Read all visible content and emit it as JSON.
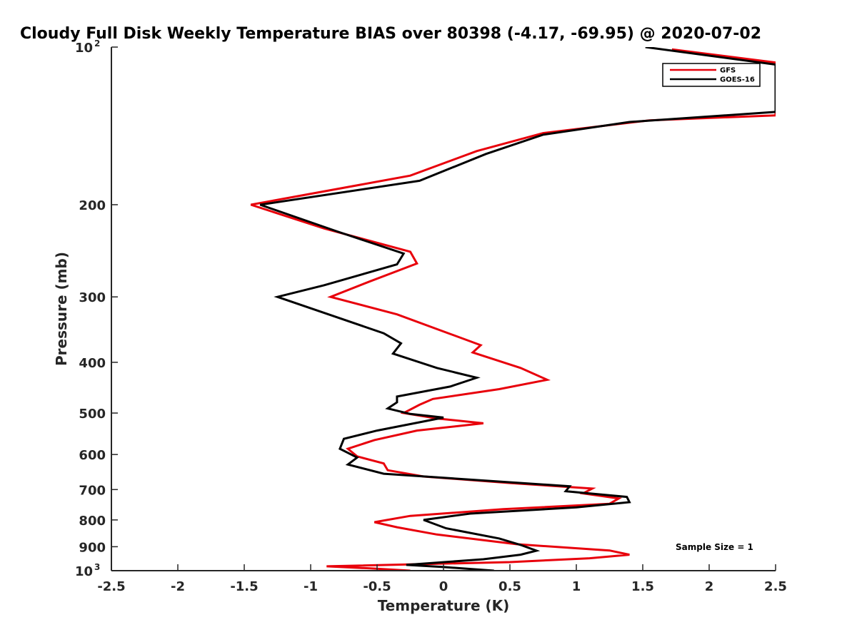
{
  "chart_data": {
    "type": "line",
    "title": "Cloudy Full Disk Weekly Temperature BIAS over 80398 (-4.17, -69.95) @ 2020-07-02",
    "xlabel": "Temperature (K)",
    "ylabel": "Pressure (mb)",
    "xlim": [
      -2.5,
      2.5
    ],
    "ylim": [
      100,
      1000
    ],
    "y_scale": "log",
    "y_reversed": true,
    "x_ticks": [
      "-2.5",
      "-2",
      "-1.5",
      "-1",
      "-0.5",
      "0",
      "0.5",
      "1",
      "1.5",
      "2",
      "2.5"
    ],
    "y_ticks": [
      {
        "value": 100,
        "label": "10",
        "sup": "2"
      },
      {
        "value": 200,
        "label": "200"
      },
      {
        "value": 300,
        "label": "300"
      },
      {
        "value": 400,
        "label": "400"
      },
      {
        "value": 500,
        "label": "500"
      },
      {
        "value": 600,
        "label": "600"
      },
      {
        "value": 700,
        "label": "700"
      },
      {
        "value": 800,
        "label": "800"
      },
      {
        "value": 900,
        "label": "900"
      },
      {
        "value": 1000,
        "label": "10",
        "sup": "3"
      }
    ],
    "legend": {
      "position": "top-right",
      "entries": [
        "GFS",
        "GOES-16"
      ]
    },
    "annotation": "Sample Size = 1",
    "grid": false,
    "series": [
      {
        "name": "GFS",
        "color": "#e8000b",
        "points": [
          [
            1.72,
            101
          ],
          [
            2.5,
            107
          ],
          [
            2.5,
            135
          ],
          [
            1.55,
            138
          ],
          [
            0.75,
            146
          ],
          [
            0.25,
            158
          ],
          [
            -0.25,
            176
          ],
          [
            -1.45,
            200
          ],
          [
            -0.9,
            222
          ],
          [
            -0.25,
            246
          ],
          [
            -0.2,
            259
          ],
          [
            -0.55,
            280
          ],
          [
            -0.85,
            300
          ],
          [
            -0.35,
            324
          ],
          [
            0.05,
            353
          ],
          [
            0.28,
            371
          ],
          [
            0.22,
            383
          ],
          [
            0.58,
            410
          ],
          [
            0.78,
            432
          ],
          [
            0.42,
            450
          ],
          [
            -0.08,
            470
          ],
          [
            -0.18,
            482
          ],
          [
            -0.3,
            500
          ],
          [
            -0.05,
            512
          ],
          [
            0.3,
            523
          ],
          [
            -0.2,
            540
          ],
          [
            -0.52,
            563
          ],
          [
            -0.72,
            585
          ],
          [
            -0.65,
            605
          ],
          [
            -0.45,
            624
          ],
          [
            -0.42,
            643
          ],
          [
            -0.15,
            661
          ],
          [
            0.5,
            680
          ],
          [
            1.12,
            697
          ],
          [
            1.05,
            712
          ],
          [
            1.32,
            728
          ],
          [
            1.25,
            745
          ],
          [
            0.45,
            763
          ],
          [
            -0.25,
            786
          ],
          [
            -0.52,
            808
          ],
          [
            -0.35,
            826
          ],
          [
            -0.05,
            853
          ],
          [
            0.55,
            890
          ],
          [
            1.25,
            915
          ],
          [
            1.4,
            932
          ],
          [
            1.1,
            947
          ],
          [
            0.5,
            963
          ],
          [
            -0.88,
            981
          ],
          [
            -0.55,
            990
          ],
          [
            -0.25,
            1000
          ]
        ]
      },
      {
        "name": "GOES-16",
        "color": "#000000",
        "points": [
          [
            1.52,
            100
          ],
          [
            2.5,
            108
          ],
          [
            2.5,
            133
          ],
          [
            1.4,
            139
          ],
          [
            0.75,
            147
          ],
          [
            0.32,
            160
          ],
          [
            -0.18,
            180
          ],
          [
            -1.38,
            200
          ],
          [
            -0.8,
            225
          ],
          [
            -0.3,
            248
          ],
          [
            -0.35,
            260
          ],
          [
            -0.9,
            285
          ],
          [
            -1.25,
            300
          ],
          [
            -0.85,
            325
          ],
          [
            -0.45,
            352
          ],
          [
            -0.32,
            368
          ],
          [
            -0.38,
            385
          ],
          [
            -0.05,
            410
          ],
          [
            0.25,
            428
          ],
          [
            0.05,
            445
          ],
          [
            -0.35,
            465
          ],
          [
            -0.35,
            477
          ],
          [
            -0.42,
            490
          ],
          [
            -0.25,
            502
          ],
          [
            0.0,
            510
          ],
          [
            -0.5,
            540
          ],
          [
            -0.75,
            560
          ],
          [
            -0.78,
            585
          ],
          [
            -0.65,
            608
          ],
          [
            -0.72,
            627
          ],
          [
            -0.45,
            653
          ],
          [
            0.95,
            690
          ],
          [
            0.92,
            705
          ],
          [
            1.38,
            723
          ],
          [
            1.4,
            740
          ],
          [
            1.0,
            757
          ],
          [
            0.2,
            778
          ],
          [
            -0.15,
            800
          ],
          [
            0.02,
            830
          ],
          [
            0.42,
            868
          ],
          [
            0.58,
            893
          ],
          [
            0.7,
            916
          ],
          [
            0.58,
            932
          ],
          [
            0.3,
            951
          ],
          [
            -0.28,
            975
          ],
          [
            0.0,
            984
          ],
          [
            0.38,
            1000
          ]
        ]
      }
    ]
  }
}
